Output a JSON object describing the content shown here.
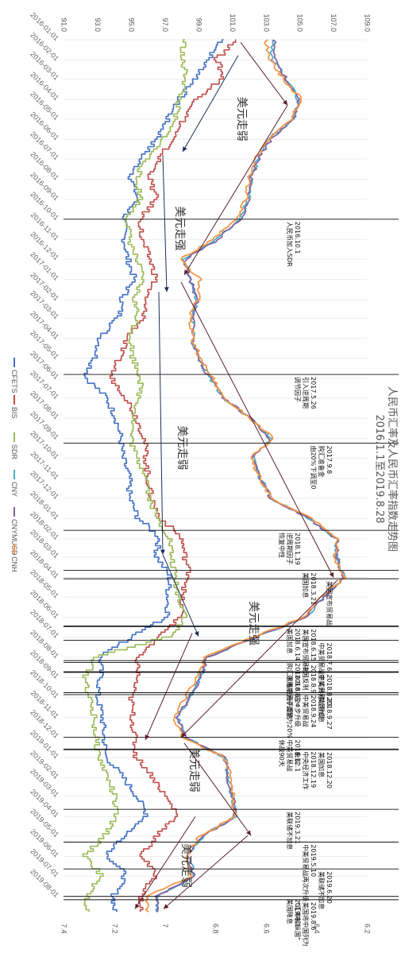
{
  "chart_data": {
    "type": "line",
    "title": [
      "人民币汇率及人民币汇率指数走势图",
      "2016.1.1至2019.8.28"
    ],
    "x_axis": {
      "ticks": [
        "2016-01-01",
        "2016-02-01",
        "2016-03-01",
        "2016-04-01",
        "2016-05-01",
        "2016-06-01",
        "2016-07-01",
        "2016-08-01",
        "2016-09-01",
        "2016-10-01",
        "2016-11-01",
        "2016-12-01",
        "2017-01-01",
        "2017-02-01",
        "2017-03-01",
        "2017-04-01",
        "2017-05-01",
        "2017-06-01",
        "2017-07-01",
        "2017-08-01",
        "2017-09-01",
        "2017-10-01",
        "2017-11-01",
        "2017-12-01",
        "2018-01-01",
        "2018-02-01",
        "2018-03-01",
        "2018-04-01",
        "2018-05-01",
        "2018-06-01",
        "2018-07-01",
        "2018-08-01",
        "2018-09-01",
        "2018-10-01",
        "2018-11-01",
        "2018-12-01",
        "2019-01-01",
        "2019-02-01",
        "2019-03-01",
        "2019-04-01",
        "2019-05-01",
        "2019-06-01",
        "2019-07-01",
        "2019-08-01"
      ]
    },
    "left_axis": {
      "ticks": [
        "91.0",
        "93.0",
        "95.0",
        "97.0",
        "99.0",
        "101.0",
        "103.0",
        "105.0",
        "107.0",
        "109.0"
      ],
      "range": [
        91,
        109
      ]
    },
    "right_axis": {
      "ticks": [
        "7.4",
        "7.2",
        "7",
        "6.8",
        "6.6",
        "6.4",
        "6.2"
      ],
      "range": [
        6.2,
        7.4
      ],
      "reversed": true
    },
    "legend_position": "bottom",
    "legend": [
      "CFETS",
      "BIS",
      "SDR",
      "CNY",
      "CNYMUSD",
      "CNH"
    ],
    "series_colors": {
      "CFETS": "#4472c4",
      "BIS": "#c0504d",
      "SDR": "#9bbb59",
      "CNY": "#4bacc6",
      "CNYMUSD": "#8064a2",
      "CNH": "#f79646"
    },
    "series": [
      {
        "name": "CFETS",
        "axis": "left",
        "x": [
          "2016-01-01",
          "2016-02-01",
          "2016-03-01",
          "2016-04-01",
          "2016-05-01",
          "2016-06-01",
          "2016-07-01",
          "2016-08-01",
          "2016-09-01",
          "2016-10-01",
          "2016-11-01",
          "2016-12-01",
          "2017-01-01",
          "2017-02-01",
          "2017-03-01",
          "2017-04-01",
          "2017-05-01",
          "2017-06-01",
          "2017-07-01",
          "2017-08-01",
          "2017-09-01",
          "2017-10-01",
          "2017-11-01",
          "2017-12-01",
          "2018-01-01",
          "2018-02-01",
          "2018-03-01",
          "2018-04-01",
          "2018-05-01",
          "2018-06-01",
          "2018-07-01",
          "2018-08-01",
          "2018-09-01",
          "2018-10-01",
          "2018-11-01",
          "2018-12-01",
          "2019-01-01",
          "2019-02-01",
          "2019-03-01",
          "2019-04-01",
          "2019-05-01",
          "2019-06-01",
          "2019-07-01",
          "2019-08-01"
        ],
        "values": [
          100.5,
          99.6,
          98.9,
          97.9,
          97.2,
          96.6,
          95.6,
          95.0,
          95.4,
          94.6,
          94.6,
          94.8,
          95.2,
          94.5,
          94.3,
          93.2,
          92.9,
          92.3,
          93.5,
          94.1,
          94.4,
          94.5,
          94.9,
          94.9,
          95.4,
          96.7,
          96.5,
          97.3,
          97.2,
          97.2,
          95.2,
          93.2,
          93.2,
          93.0,
          93.3,
          93.4,
          93.5,
          94.5,
          95.3,
          96.0,
          94.7,
          93.6,
          94.7,
          94.0
        ]
      },
      {
        "name": "BIS",
        "axis": "left",
        "x": [
          "2016-01-01",
          "2016-02-01",
          "2016-03-01",
          "2016-04-01",
          "2016-05-01",
          "2016-06-01",
          "2016-07-01",
          "2016-08-01",
          "2016-09-01",
          "2016-10-01",
          "2016-11-01",
          "2016-12-01",
          "2017-01-01",
          "2017-02-01",
          "2017-03-01",
          "2017-04-01",
          "2017-05-01",
          "2017-06-01",
          "2017-07-01",
          "2017-08-01",
          "2017-09-01",
          "2017-10-01",
          "2017-11-01",
          "2017-12-01",
          "2018-01-01",
          "2018-02-01",
          "2018-03-01",
          "2018-04-01",
          "2018-05-01",
          "2018-06-01",
          "2018-07-01",
          "2018-08-01",
          "2018-09-01",
          "2018-10-01",
          "2018-11-01",
          "2018-12-01",
          "2019-01-01",
          "2019-02-01",
          "2019-03-01",
          "2019-04-01",
          "2019-05-01",
          "2019-06-01",
          "2019-07-01",
          "2019-08-01"
        ],
        "values": [
          101.4,
          100.1,
          100.5,
          99.0,
          98.2,
          97.5,
          96.7,
          96.1,
          96.5,
          95.6,
          95.6,
          96.1,
          96.5,
          95.8,
          95.8,
          94.8,
          94.3,
          93.8,
          94.7,
          95.3,
          95.8,
          95.9,
          96.0,
          96.2,
          96.7,
          98.0,
          98.2,
          98.5,
          98.0,
          98.0,
          96.7,
          95.4,
          95.4,
          95.0,
          95.1,
          95.2,
          95.3,
          96.3,
          97.0,
          97.8,
          96.6,
          95.6,
          96.5,
          95.6
        ]
      },
      {
        "name": "SDR",
        "axis": "left",
        "x": [
          "2016-01-01",
          "2016-02-01",
          "2016-03-01",
          "2016-04-01",
          "2016-05-01",
          "2016-06-01",
          "2016-07-01",
          "2016-08-01",
          "2016-09-01",
          "2016-10-01",
          "2016-11-01",
          "2016-12-01",
          "2017-01-01",
          "2017-02-01",
          "2017-03-01",
          "2017-04-01",
          "2017-05-01",
          "2017-06-01",
          "2017-07-01",
          "2017-08-01",
          "2017-09-01",
          "2017-10-01",
          "2017-11-01",
          "2017-12-01",
          "2018-01-01",
          "2018-02-01",
          "2018-03-01",
          "2018-04-01",
          "2018-05-01",
          "2018-06-01",
          "2018-07-01",
          "2018-08-01",
          "2018-09-01",
          "2018-10-01",
          "2018-11-01",
          "2018-12-01",
          "2019-01-01",
          "2019-02-01",
          "2019-03-01",
          "2019-04-01",
          "2019-05-01",
          "2019-06-01",
          "2019-07-01",
          "2019-08-01"
        ],
        "values": [
          98.2,
          98.0,
          98.3,
          97.9,
          97.6,
          97.0,
          96.0,
          95.3,
          95.6,
          94.8,
          94.9,
          95.3,
          95.7,
          95.2,
          95.4,
          95.0,
          95.1,
          95.6,
          95.5,
          95.2,
          95.0,
          95.3,
          96.0,
          96.1,
          96.5,
          97.3,
          97.4,
          97.6,
          97.8,
          98.3,
          97.4,
          93.0,
          92.3,
          92.5,
          92.8,
          92.9,
          93.1,
          93.6,
          94.0,
          94.1,
          93.5,
          92.3,
          93.2,
          92.4
        ]
      },
      {
        "name": "CNY",
        "axis": "right",
        "x": [
          "2016-01-01",
          "2016-02-01",
          "2016-03-01",
          "2016-04-01",
          "2016-05-01",
          "2016-06-01",
          "2016-07-01",
          "2016-08-01",
          "2016-09-01",
          "2016-10-01",
          "2016-11-01",
          "2016-12-01",
          "2017-01-01",
          "2017-02-01",
          "2017-03-01",
          "2017-04-01",
          "2017-05-01",
          "2017-06-01",
          "2017-07-01",
          "2017-08-01",
          "2017-09-01",
          "2017-10-01",
          "2017-11-01",
          "2017-12-01",
          "2018-01-01",
          "2018-02-01",
          "2018-03-01",
          "2018-04-01",
          "2018-05-01",
          "2018-06-01",
          "2018-07-01",
          "2018-08-01",
          "2018-09-01",
          "2018-10-01",
          "2018-11-01",
          "2018-12-01",
          "2019-01-01",
          "2019-02-01",
          "2019-03-01",
          "2019-04-01",
          "2019-05-01",
          "2019-06-01",
          "2019-07-01",
          "2019-08-01"
        ],
        "values": [
          6.58,
          6.57,
          6.52,
          6.47,
          6.49,
          6.59,
          6.63,
          6.66,
          6.67,
          6.7,
          6.8,
          6.92,
          6.9,
          6.87,
          6.89,
          6.89,
          6.87,
          6.82,
          6.77,
          6.66,
          6.58,
          6.65,
          6.62,
          6.58,
          6.43,
          6.32,
          6.32,
          6.29,
          6.37,
          6.44,
          6.64,
          6.83,
          6.86,
          6.9,
          6.95,
          6.92,
          6.76,
          6.75,
          6.73,
          6.72,
          6.85,
          6.91,
          6.88,
          7.03
        ]
      },
      {
        "name": "CNYMUSD",
        "axis": "right",
        "x": [
          "2016-01-01",
          "2016-02-01",
          "2016-03-01",
          "2016-04-01",
          "2016-05-01",
          "2016-06-01",
          "2016-07-01",
          "2016-08-01",
          "2016-09-01",
          "2016-10-01",
          "2016-11-01",
          "2016-12-01",
          "2017-01-01",
          "2017-02-01",
          "2017-03-01",
          "2017-04-01",
          "2017-05-01",
          "2017-06-01",
          "2017-07-01",
          "2017-08-01",
          "2017-09-01",
          "2017-10-01",
          "2017-11-01",
          "2017-12-01",
          "2018-01-01",
          "2018-02-01",
          "2018-03-01",
          "2018-04-01",
          "2018-05-01",
          "2018-06-01",
          "2018-07-01",
          "2018-08-01",
          "2018-09-01",
          "2018-10-01",
          "2018-11-01",
          "2018-12-01",
          "2019-01-01",
          "2019-02-01",
          "2019-03-01",
          "2019-04-01",
          "2019-05-01",
          "2019-06-01",
          "2019-07-01",
          "2019-08-01"
        ],
        "values": [
          6.57,
          6.56,
          6.52,
          6.47,
          6.49,
          6.58,
          6.63,
          6.66,
          6.67,
          6.7,
          6.79,
          6.92,
          6.9,
          6.87,
          6.88,
          6.89,
          6.87,
          6.82,
          6.77,
          6.66,
          6.58,
          6.65,
          6.62,
          6.58,
          6.43,
          6.32,
          6.32,
          6.29,
          6.37,
          6.44,
          6.64,
          6.83,
          6.86,
          6.9,
          6.95,
          6.92,
          6.76,
          6.75,
          6.73,
          6.72,
          6.85,
          6.91,
          6.88,
          7.03
        ]
      },
      {
        "name": "CNH",
        "axis": "right",
        "x": [
          "2016-01-01",
          "2016-02-01",
          "2016-03-01",
          "2016-04-01",
          "2016-05-01",
          "2016-06-01",
          "2016-07-01",
          "2016-08-01",
          "2016-09-01",
          "2016-10-01",
          "2016-11-01",
          "2016-12-01",
          "2017-01-01",
          "2017-02-01",
          "2017-03-01",
          "2017-04-01",
          "2017-05-01",
          "2017-06-01",
          "2017-07-01",
          "2017-08-01",
          "2017-09-01",
          "2017-10-01",
          "2017-11-01",
          "2017-12-01",
          "2018-01-01",
          "2018-02-01",
          "2018-03-01",
          "2018-04-01",
          "2018-05-01",
          "2018-06-01",
          "2018-07-01",
          "2018-08-01",
          "2018-09-01",
          "2018-10-01",
          "2018-11-01",
          "2018-12-01",
          "2019-01-01",
          "2019-02-01",
          "2019-03-01",
          "2019-04-01",
          "2019-05-01",
          "2019-06-01",
          "2019-07-01",
          "2019-08-01"
        ],
        "values": [
          6.6,
          6.58,
          6.53,
          6.46,
          6.5,
          6.59,
          6.64,
          6.67,
          6.68,
          6.71,
          6.81,
          6.94,
          6.86,
          6.87,
          6.9,
          6.89,
          6.86,
          6.81,
          6.77,
          6.66,
          6.57,
          6.66,
          6.62,
          6.58,
          6.42,
          6.32,
          6.33,
          6.29,
          6.38,
          6.45,
          6.65,
          6.84,
          6.87,
          6.92,
          6.96,
          6.93,
          6.76,
          6.74,
          6.73,
          6.72,
          6.86,
          6.92,
          6.89,
          7.07
        ]
      }
    ],
    "events": [
      {
        "date": "2016-10-01",
        "lines": [
          "2016.10.1",
          "人民币加入SDR"
        ]
      },
      {
        "date": "2017-05-26",
        "lines": [
          "2017.5.26",
          "引入逆周期",
          "调节因子"
        ]
      },
      {
        "date": "2017-09-08",
        "lines": [
          "2017.9.8",
          "购汇准备金",
          "由20%下调至0"
        ]
      },
      {
        "date": "2018-01-19",
        "lines": [
          "2018.1.19",
          "逆周期因子",
          "恢复中性"
        ]
      },
      {
        "date": "2018-03-21",
        "lines": [
          "2018.3.21",
          "美国加息"
        ]
      },
      {
        "date": "2018-04-03",
        "lines": [
          "美国宣布贸易战"
        ]
      },
      {
        "date": "2018-06-14",
        "lines": [
          "2018.6.14",
          "美国加息"
        ]
      },
      {
        "date": "2018-06-15",
        "lines": [
          "2018.6.15",
          "美国宣布贸易战"
        ]
      },
      {
        "date": "2018-07-06",
        "lines": [
          "2018.7.6",
          "中美贸易战正式开打"
        ]
      },
      {
        "date": "2018-08-06",
        "lines": [
          "2018.8.6",
          "购汇准备金由0调整为20%"
        ]
      },
      {
        "date": "2018-08-09",
        "lines": [
          "2018.8.9",
          "中国反制"
        ]
      },
      {
        "date": "2018-08-23",
        "lines": [
          "2018.8.23",
          "中美贸易战升级"
        ]
      },
      {
        "date": "2018-08-24",
        "lines": [
          "2018.8.24",
          "逆周期因子重启"
        ]
      },
      {
        "date": "2018-09-24",
        "lines": [
          "2018.9.24",
          "中美贸易战",
          "进一步升级"
        ]
      },
      {
        "date": "2018-09-27",
        "lines": [
          "2018.9.27",
          "美国加息"
        ]
      },
      {
        "date": "2018-12-01",
        "lines": [
          "2018.12.1",
          "中美贸易战",
          "休战90天"
        ]
      },
      {
        "date": "2018-12-19",
        "lines": [
          "2018.12.19",
          "中央经济工作",
          "会议"
        ]
      },
      {
        "date": "2018-12-20",
        "lines": [
          "2018.12.20",
          "美国加息"
        ]
      },
      {
        "date": "2019-03-21",
        "lines": [
          "2019.3.21",
          "美联储不加息"
        ]
      },
      {
        "date": "2019-05-10",
        "lines": [
          "2019.5.10",
          "中美贸易战再次升级"
        ]
      },
      {
        "date": "2019-06-20",
        "lines": [
          "2019.6.20",
          "美联储不加息"
        ]
      },
      {
        "date": "2019-08-01",
        "lines": [
          "2019.8.1",
          "美国降息"
        ]
      },
      {
        "date": "2019-08-06",
        "lines": [
          "2019.8.6",
          "美国将中国列为",
          "“汇率操纵国”"
        ]
      }
    ],
    "annotations": [
      {
        "label": "美元走弱",
        "date": "2016-05-01"
      },
      {
        "label": "美元走强",
        "date": "2016-10-15"
      },
      {
        "label": "美元走弱",
        "date": "2017-09-15"
      },
      {
        "label": "美元走强",
        "date": "2018-06-10"
      },
      {
        "label": "美元走弱",
        "date": "2019-01-20"
      },
      {
        "label": "美元走弱",
        "date": "2019-06-15"
      }
    ]
  }
}
